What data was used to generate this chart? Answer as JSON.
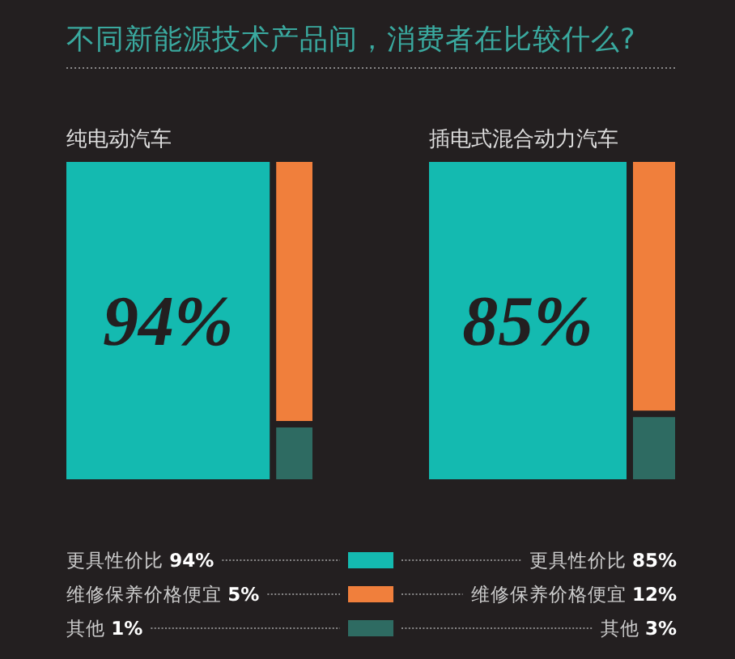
{
  "chart_data": [
    {
      "type": "other",
      "title": "不同新能源技术产品间，消费者在比较什么?",
      "subtitle": "纯电动汽车",
      "categories": [
        "更具性价比",
        "维修保养价格便宜",
        "其他"
      ],
      "values": [
        94,
        5,
        1
      ],
      "value_labels": [
        "94%",
        "5%",
        "1%"
      ],
      "colors": [
        "#14bab0",
        "#f07f3c",
        "#2e6b62"
      ]
    },
    {
      "type": "other",
      "subtitle": "插电式混合动力汽车",
      "categories": [
        "更具性价比",
        "维修保养价格便宜",
        "其他"
      ],
      "values": [
        85,
        12,
        3
      ],
      "value_labels": [
        "85%",
        "12%",
        "3%"
      ],
      "colors": [
        "#14bab0",
        "#f07f3c",
        "#2e6b62"
      ]
    }
  ]
}
